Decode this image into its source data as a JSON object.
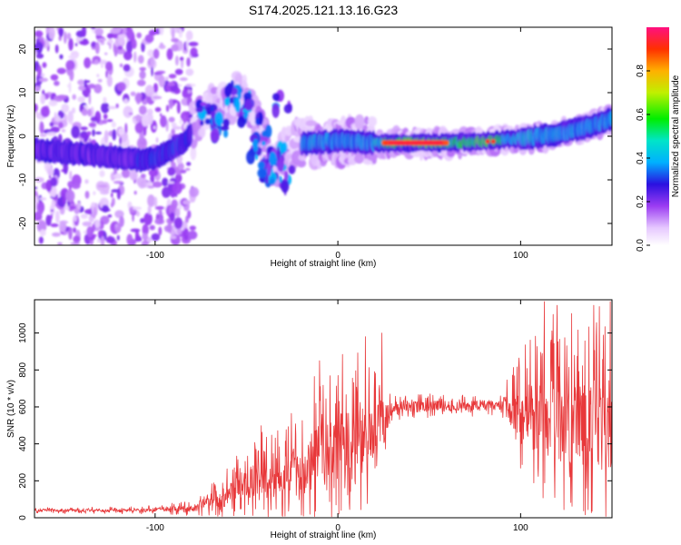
{
  "figure": {
    "title": "S174.2025.121.13.16.G23"
  },
  "chart_data": [
    {
      "type": "heatmap",
      "name": "spectrogram",
      "xlabel": "Height of straight line (km)",
      "ylabel": "Frequency (Hz)",
      "xlim": [
        -166,
        150
      ],
      "ylim": [
        -25,
        25
      ],
      "xticks": [
        -100,
        0,
        100
      ],
      "yticks": [
        -20,
        -10,
        0,
        10,
        20
      ],
      "colorbar": {
        "label": "Normalized spectral amplitude",
        "range": [
          0,
          1
        ],
        "ticks": [
          "0.0",
          "0.2",
          "0.4",
          "0.6",
          "0.8"
        ],
        "tick_values": [
          0.0,
          0.2,
          0.4,
          0.6,
          0.8
        ]
      },
      "ridge": {
        "description_points": [
          {
            "x": -166,
            "y": -3
          },
          {
            "x": -140,
            "y": -4
          },
          {
            "x": -120,
            "y": -5
          },
          {
            "x": -105,
            "y": -5.5
          },
          {
            "x": -95,
            "y": -4
          },
          {
            "x": -85,
            "y": -1.5
          },
          {
            "x": -80,
            "y": 0.5
          },
          {
            "x": -75,
            "y": 6
          },
          {
            "x": -65,
            "y": 6
          },
          {
            "x": -55,
            "y": 11
          },
          {
            "x": -45,
            "y": 4
          },
          {
            "x": -35,
            "y": -8
          },
          {
            "x": -25,
            "y": -2
          },
          {
            "x": -15,
            "y": -1.5
          },
          {
            "x": 0,
            "y": -1
          },
          {
            "x": 20,
            "y": -1.5
          },
          {
            "x": 40,
            "y": -1.5
          },
          {
            "x": 60,
            "y": -1.5
          },
          {
            "x": 80,
            "y": -1.2
          },
          {
            "x": 100,
            "y": -0.5
          },
          {
            "x": 120,
            "y": 0.5
          },
          {
            "x": 140,
            "y": 2.5
          },
          {
            "x": 150,
            "y": 4
          }
        ],
        "peak_segment": {
          "x_from": 25,
          "x_to": 60,
          "y": -1.5,
          "amplitude": 1.0
        }
      }
    },
    {
      "type": "line",
      "name": "snr",
      "xlabel": "Height of straight line (km)",
      "ylabel": "SNR (10 * v/v)",
      "xlim": [
        -166,
        150
      ],
      "ylim": [
        0,
        1180
      ],
      "xticks": [
        -100,
        0,
        100
      ],
      "yticks": [
        0,
        200,
        400,
        600,
        800,
        1000
      ],
      "color": "#e8383a",
      "envelope": [
        {
          "x": -166,
          "base": 40,
          "amp": 15
        },
        {
          "x": -110,
          "base": 40,
          "amp": 20
        },
        {
          "x": -80,
          "base": 50,
          "amp": 40
        },
        {
          "x": -60,
          "base": 120,
          "amp": 140
        },
        {
          "x": -40,
          "base": 220,
          "amp": 260
        },
        {
          "x": -20,
          "base": 260,
          "amp": 300
        },
        {
          "x": -10,
          "base": 330,
          "amp": 420
        },
        {
          "x": 10,
          "base": 380,
          "amp": 450
        },
        {
          "x": 25,
          "base": 520,
          "amp": 280
        },
        {
          "x": 30,
          "base": 600,
          "amp": 70
        },
        {
          "x": 90,
          "base": 610,
          "amp": 60
        },
        {
          "x": 100,
          "base": 560,
          "amp": 350
        },
        {
          "x": 120,
          "base": 520,
          "amp": 500
        },
        {
          "x": 150,
          "base": 520,
          "amp": 550
        }
      ],
      "peaks": [
        {
          "x": -10,
          "y": 850
        },
        {
          "x": 15,
          "y": 980
        },
        {
          "x": 24,
          "y": 1000
        },
        {
          "x": 113,
          "y": 1170
        },
        {
          "x": 120,
          "y": 1150
        },
        {
          "x": 140,
          "y": 1150
        },
        {
          "x": 149,
          "y": 1170
        }
      ]
    }
  ]
}
